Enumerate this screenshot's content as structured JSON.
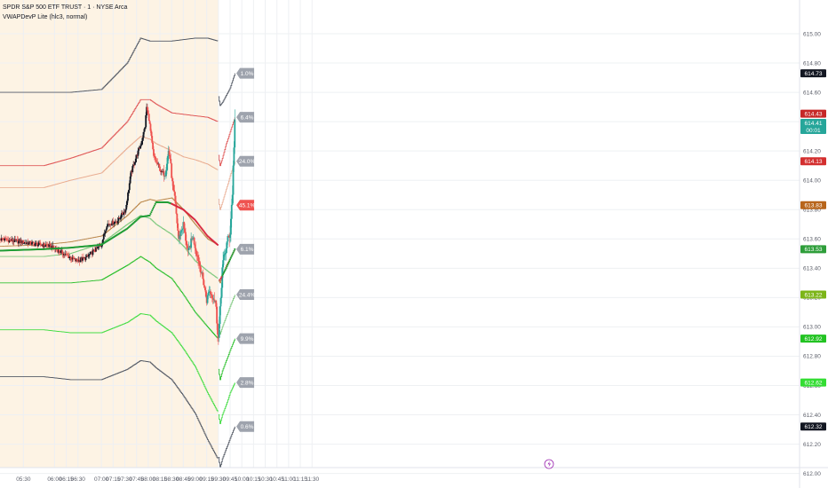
{
  "header": {
    "symbol": "SPDR S&P 500 ETF TRUST · 1 · NYSE Arca",
    "indicator": "VWAPDevP Lite (hlc3, normal)"
  },
  "colors": {
    "premarket_bg": "#fdf3e4",
    "grid": "#eef0f3",
    "up": "#26a69a",
    "down": "#ef5350",
    "candle_body": "#131722",
    "dots_green": "#1e9c34",
    "dots_red": "#d7263d"
  },
  "chart_data": {
    "type": "line",
    "ylim": [
      612.04,
      615.23
    ],
    "x_range_minutes": [
      290,
      1315
    ],
    "premarket_end_minute": 570,
    "x_ticks": [
      {
        "m": 320,
        "label": "05:30"
      },
      {
        "m": 360,
        "label": "06:00"
      },
      {
        "m": 375,
        "label": "06:15"
      },
      {
        "m": 390,
        "label": "06:30"
      },
      {
        "m": 420,
        "label": "07:00"
      },
      {
        "m": 435,
        "label": "07:15"
      },
      {
        "m": 450,
        "label": "07:30"
      },
      {
        "m": 465,
        "label": "07:45"
      },
      {
        "m": 480,
        "label": "08:00"
      },
      {
        "m": 495,
        "label": "08:15"
      },
      {
        "m": 510,
        "label": "08:30"
      },
      {
        "m": 525,
        "label": "08:45"
      },
      {
        "m": 540,
        "label": "09:00"
      },
      {
        "m": 555,
        "label": "09:15"
      },
      {
        "m": 570,
        "label": "09:30"
      },
      {
        "m": 585,
        "label": "09:45"
      },
      {
        "m": 600,
        "label": "10:00"
      },
      {
        "m": 615,
        "label": "10:15"
      },
      {
        "m": 630,
        "label": "10:30"
      },
      {
        "m": 645,
        "label": "10:45"
      },
      {
        "m": 660,
        "label": "11:00"
      },
      {
        "m": 675,
        "label": "11:15"
      },
      {
        "m": 690,
        "label": "11:30"
      }
    ],
    "y_ticks": [
      "615.00",
      "614.80",
      "614.60",
      "614.40",
      "614.20",
      "614.00",
      "613.80",
      "613.60",
      "613.40",
      "613.20",
      "613.00",
      "612.80",
      "612.60",
      "612.40",
      "612.20",
      "612.00"
    ],
    "right_price_tags": [
      {
        "value": 614.73,
        "label": "614.73",
        "color": "#131722"
      },
      {
        "value": 614.43,
        "label": "614.43",
        "color": "#c62828"
      },
      {
        "value": 614.41,
        "label": "614.41",
        "color": "#26a69a",
        "sub": "00:01"
      },
      {
        "value": 614.13,
        "label": "614.13",
        "color": "#d32f2f"
      },
      {
        "value": 613.83,
        "label": "613.83",
        "color": "#b8651b"
      },
      {
        "value": 613.53,
        "label": "613.53",
        "color": "#2e9e3a"
      },
      {
        "value": 613.22,
        "label": "613.22",
        "color": "#7cb518"
      },
      {
        "value": 612.92,
        "label": "612.92",
        "color": "#22c322"
      },
      {
        "value": 612.62,
        "label": "612.62",
        "color": "#33dd33"
      },
      {
        "value": 612.32,
        "label": "612.32",
        "color": "#131722"
      }
    ],
    "pct_labels": [
      {
        "value": 614.73,
        "label": "1.0%"
      },
      {
        "value": 614.43,
        "label": "6.4%"
      },
      {
        "value": 614.13,
        "label": "24.0%"
      },
      {
        "value": 613.83,
        "label": "45.1%",
        "color": "#ef5350"
      },
      {
        "value": 613.53,
        "label": "6.1%"
      },
      {
        "value": 613.22,
        "label": "24.4%"
      },
      {
        "value": 612.92,
        "label": "9.9%"
      },
      {
        "value": 612.62,
        "label": "2.8%"
      },
      {
        "value": 612.32,
        "label": "0.6%"
      }
    ],
    "band_session_1": {
      "minutes": [
        290,
        346,
        380,
        420,
        453,
        470,
        482,
        490,
        510,
        525,
        540,
        556,
        569
      ],
      "upper3": [
        614.6,
        614.6,
        614.6,
        614.62,
        614.8,
        614.97,
        614.95,
        614.95,
        614.95,
        614.96,
        614.97,
        614.97,
        614.95
      ],
      "upper2": [
        614.1,
        614.1,
        614.15,
        614.22,
        614.4,
        614.55,
        614.55,
        614.52,
        614.46,
        614.45,
        614.44,
        614.43,
        614.4
      ],
      "upper1": [
        613.95,
        613.95,
        614.0,
        614.05,
        614.22,
        614.3,
        614.28,
        614.25,
        614.2,
        614.16,
        614.14,
        614.11,
        614.07
      ],
      "mid": [
        613.55,
        613.56,
        613.58,
        613.62,
        613.76,
        613.85,
        613.87,
        613.86,
        613.88,
        613.8,
        613.7,
        613.6,
        613.56
      ],
      "lower1": [
        613.48,
        613.48,
        613.5,
        613.57,
        613.7,
        613.76,
        613.74,
        613.7,
        613.63,
        613.55,
        613.45,
        613.38,
        613.33
      ],
      "lower2": [
        613.3,
        613.3,
        613.3,
        613.32,
        613.42,
        613.48,
        613.44,
        613.4,
        613.33,
        613.22,
        613.1,
        613.0,
        612.92
      ],
      "lower3": [
        612.98,
        612.98,
        612.96,
        612.96,
        613.03,
        613.09,
        613.08,
        613.04,
        612.96,
        612.85,
        612.73,
        612.55,
        612.42
      ]
    },
    "band_session_2": {
      "minutes": [
        570,
        572,
        575,
        580,
        585,
        591
      ],
      "upper3": [
        614.57,
        614.51,
        614.53,
        614.58,
        614.63,
        614.73
      ],
      "upper2": [
        614.17,
        614.1,
        614.15,
        614.25,
        614.33,
        614.43
      ],
      "upper1": [
        613.87,
        613.8,
        613.85,
        613.94,
        614.03,
        614.13
      ],
      "mid": [
        613.32,
        613.3,
        613.35,
        613.42,
        613.47,
        613.53
      ],
      "lower1": [
        613.0,
        612.95,
        613.0,
        613.07,
        613.14,
        613.22
      ],
      "lower2": [
        612.71,
        612.64,
        612.7,
        612.77,
        612.84,
        612.92
      ],
      "lower3": [
        612.4,
        612.34,
        612.4,
        612.47,
        612.55,
        612.62
      ],
      "outer": [
        612.11,
        612.04,
        612.1,
        612.17,
        612.24,
        612.32
      ]
    },
    "vwap_dots": {
      "minutes": [
        290,
        346,
        380,
        420,
        453,
        470,
        482,
        490,
        505,
        510,
        525,
        540,
        556,
        569
      ],
      "values": [
        613.52,
        613.53,
        613.54,
        613.56,
        613.67,
        613.75,
        613.76,
        613.85,
        613.85,
        613.84,
        613.8,
        613.73,
        613.62,
        613.56
      ]
    },
    "vwap_dots_session_2": {
      "minutes": [
        572,
        580,
        591
      ],
      "values": [
        613.32,
        613.4,
        613.53
      ]
    },
    "close_path": {
      "minutes": [
        290,
        355,
        388,
        400,
        420,
        427,
        440,
        451,
        458,
        464,
        471,
        476,
        478,
        481,
        487,
        493,
        497,
        502,
        506,
        508,
        512,
        514,
        519,
        525,
        531,
        537,
        546,
        551,
        555,
        558,
        566,
        570,
        572,
        575,
        580,
        585,
        588,
        591
      ],
      "values": [
        613.6,
        613.55,
        613.45,
        613.47,
        613.56,
        613.7,
        613.72,
        613.8,
        614.05,
        614.15,
        614.25,
        614.37,
        614.5,
        614.42,
        614.16,
        614.1,
        614.05,
        614.05,
        614.2,
        614.15,
        613.92,
        613.88,
        613.6,
        613.7,
        613.5,
        613.62,
        613.42,
        613.3,
        613.18,
        613.25,
        613.18,
        612.92,
        613.1,
        613.4,
        613.55,
        613.65,
        613.92,
        614.41
      ]
    }
  }
}
